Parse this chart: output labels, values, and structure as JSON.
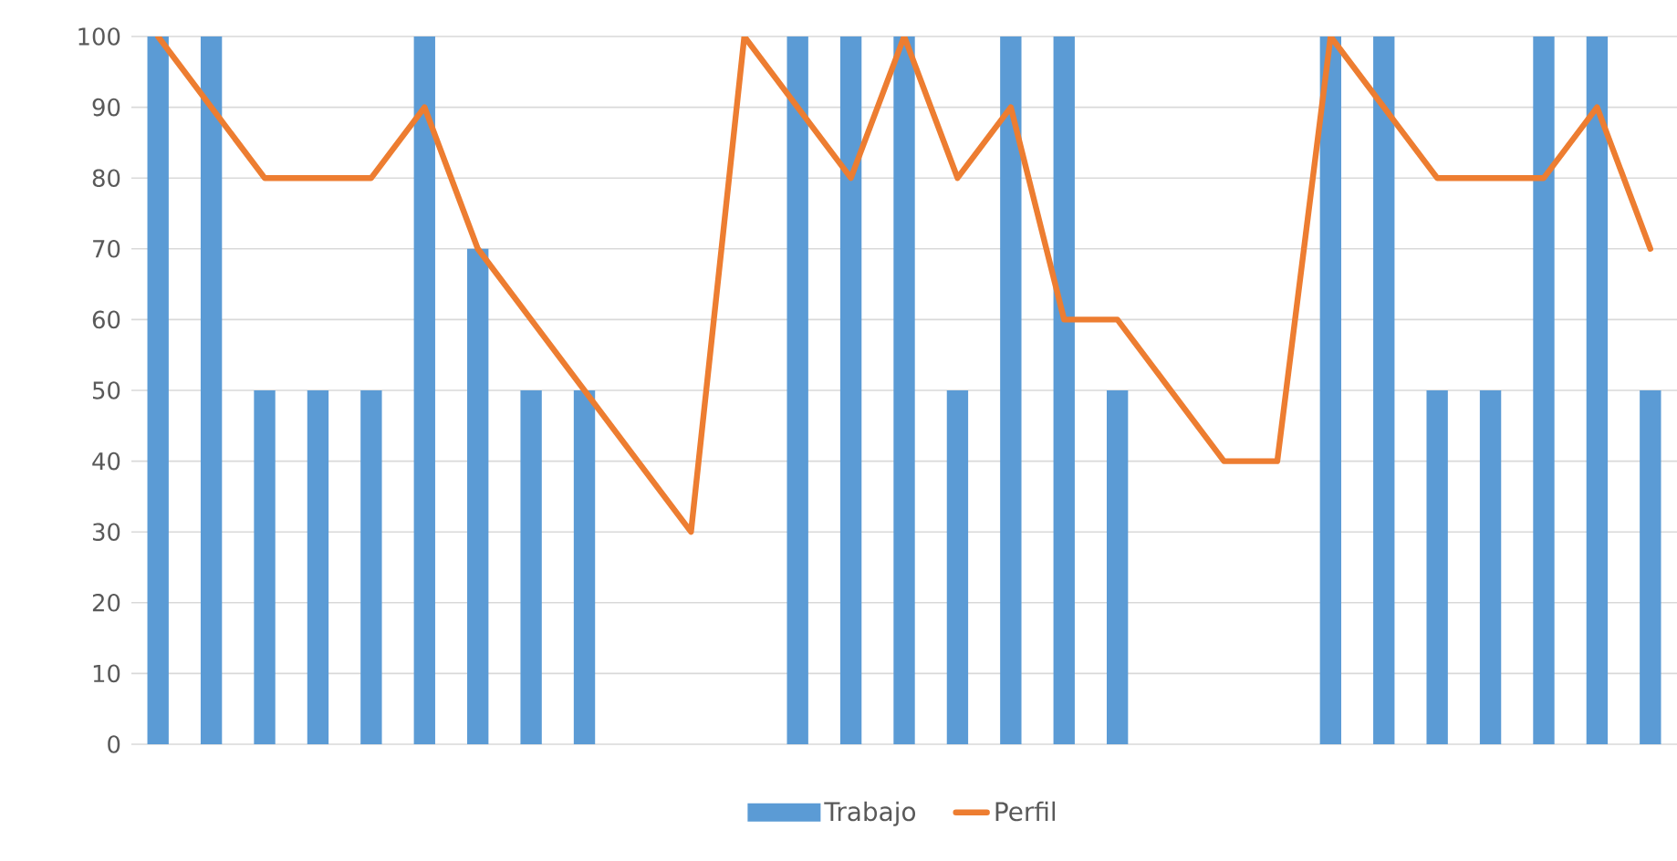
{
  "chart_data": {
    "type": "bar",
    "categories": [
      null,
      null,
      null,
      null,
      null,
      null,
      null,
      null,
      null,
      null,
      null,
      null,
      null,
      null,
      null,
      null,
      null,
      null,
      null,
      null,
      null,
      null,
      null,
      null,
      null,
      null,
      null,
      null,
      null
    ],
    "series": [
      {
        "name": "Trabajo",
        "color": "#5b9bd5",
        "values": [
          100,
          100,
          50,
          50,
          50,
          100,
          70,
          50,
          50,
          null,
          null,
          null,
          100,
          100,
          100,
          50,
          100,
          100,
          50,
          null,
          null,
          null,
          100,
          100,
          50,
          50,
          100,
          100,
          50
        ]
      },
      {
        "name": "Perfil",
        "type": "line",
        "color": "#ed7d31",
        "values": [
          100,
          90,
          80,
          80,
          80,
          90,
          70,
          60,
          50,
          40,
          30,
          100,
          90,
          80,
          100,
          80,
          90,
          60,
          60,
          50,
          40,
          40,
          100,
          90,
          80,
          80,
          80,
          90,
          70
        ]
      }
    ],
    "ylim": [
      0,
      100
    ],
    "yticks": [
      0,
      10,
      20,
      30,
      40,
      50,
      60,
      70,
      80,
      90,
      100
    ],
    "grid": "y",
    "legend": "bottom",
    "tick_labels": "y",
    "marker": "none",
    "line_style": "solid"
  }
}
